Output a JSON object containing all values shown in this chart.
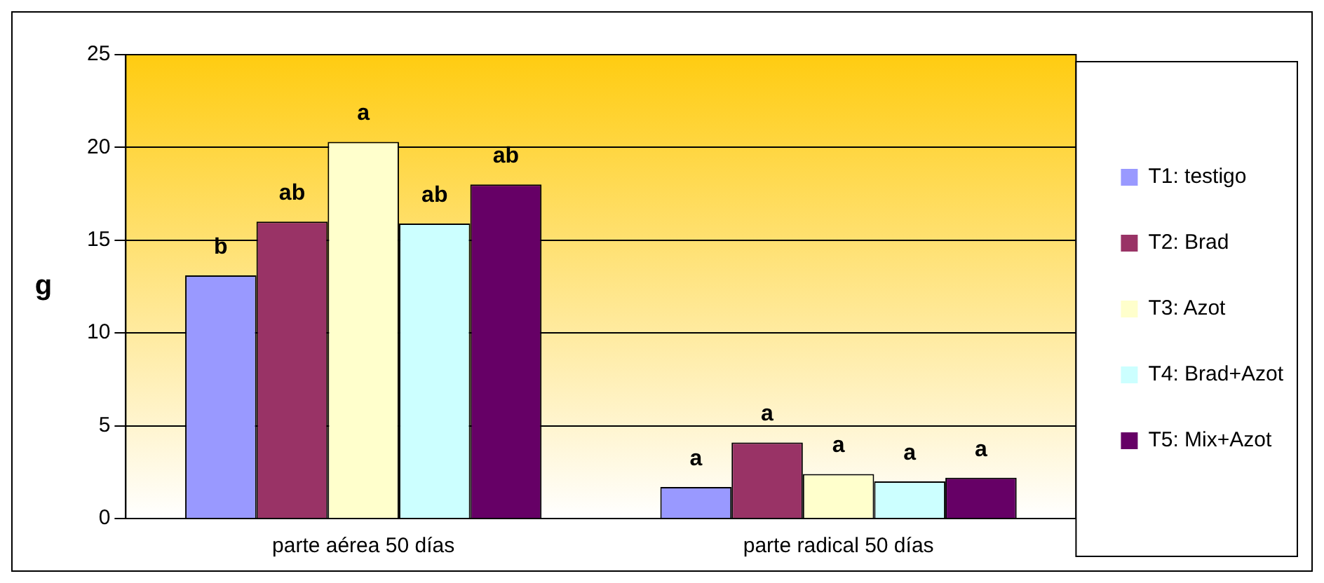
{
  "chart_data": {
    "type": "bar",
    "ylabel": "g",
    "categories": [
      "parte aérea 50 días",
      "parte radical 50 días"
    ],
    "series": [
      {
        "name": "T1: testigo",
        "color": "#9999ff",
        "values": [
          13.1,
          1.7
        ],
        "value_labels": [
          "b",
          "a"
        ]
      },
      {
        "name": "T2: Brad",
        "color": "#993366",
        "values": [
          16.0,
          4.1
        ],
        "value_labels": [
          "ab",
          "a"
        ]
      },
      {
        "name": "T3: Azot",
        "color": "#ffffcc",
        "values": [
          20.3,
          2.4
        ],
        "value_labels": [
          "a",
          "a"
        ]
      },
      {
        "name": "T4: Brad+Azot",
        "color": "#ccffff",
        "values": [
          15.9,
          2.0
        ],
        "value_labels": [
          "ab",
          "a"
        ]
      },
      {
        "name": "T5: Mix+Azot",
        "color": "#660066",
        "values": [
          18.0,
          2.2
        ],
        "value_labels": [
          "ab",
          "a"
        ]
      }
    ],
    "ylim": [
      0,
      25
    ],
    "yticks": [
      0,
      5,
      10,
      15,
      20,
      25
    ],
    "grid": "y",
    "legend": "right"
  }
}
